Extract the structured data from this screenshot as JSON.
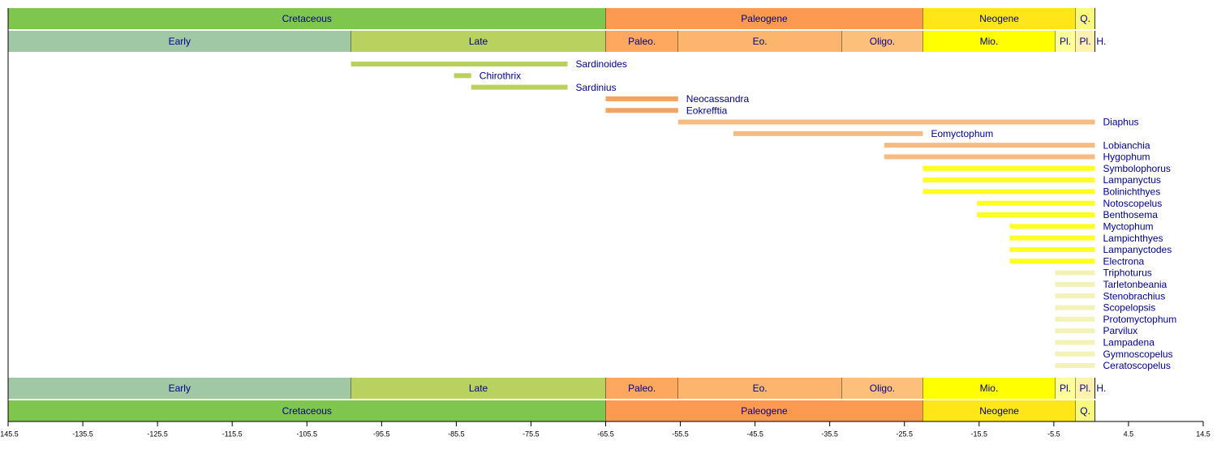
{
  "chart_data": {
    "type": "range",
    "xlim": [
      -145.5,
      14.5
    ],
    "xticks": [
      -145.5,
      -135.5,
      -125.5,
      -115.5,
      -105.5,
      -95.5,
      -85.5,
      -75.5,
      -65.5,
      -55.5,
      -45.5,
      -35.5,
      -25.5,
      -15.5,
      -5.5,
      4.5,
      14.5
    ],
    "periods": [
      {
        "name": "Cretaceous",
        "start": -145.5,
        "end": -65.5,
        "color": "#7fc64e"
      },
      {
        "name": "Paleogene",
        "start": -65.5,
        "end": -23.03,
        "color": "#fd9a52"
      },
      {
        "name": "Neogene",
        "start": -23.03,
        "end": -2.588,
        "color": "#ffe619"
      },
      {
        "name": "Q.",
        "start": -2.588,
        "end": 0,
        "color": "#f9f97f"
      }
    ],
    "epochs": [
      {
        "name": "Early",
        "start": -145.5,
        "end": -99.6,
        "color": "#a0c8a4"
      },
      {
        "name": "Late",
        "start": -99.6,
        "end": -65.5,
        "color": "#b9d15e"
      },
      {
        "name": "Paleo.",
        "start": -65.5,
        "end": -55.8,
        "color": "#fda75f"
      },
      {
        "name": "Eo.",
        "start": -55.8,
        "end": -33.9,
        "color": "#fdb46c"
      },
      {
        "name": "Oligo.",
        "start": -33.9,
        "end": -23.03,
        "color": "#fdc07a"
      },
      {
        "name": "Mio.",
        "start": -23.03,
        "end": -5.332,
        "color": "#ffff00"
      },
      {
        "name": "Pl.",
        "start": -5.332,
        "end": -2.588,
        "color": "#ffff99"
      },
      {
        "name": "Pl.",
        "start": -2.588,
        "end": -0.0117,
        "color": "#fff2ae"
      },
      {
        "name": "H.",
        "start": -0.0117,
        "end": 0,
        "color": "#fef2e0"
      }
    ],
    "taxa": [
      {
        "name": "Sardinoides",
        "start": -99.6,
        "end": -70.6,
        "color": "#b9d15e"
      },
      {
        "name": "Chirothrix",
        "start": -85.8,
        "end": -83.5,
        "color": "#b9d15e"
      },
      {
        "name": "Sardinius",
        "start": -83.5,
        "end": -70.6,
        "color": "#b9d15e"
      },
      {
        "name": "Neocassandra",
        "start": -65.5,
        "end": -55.8,
        "color": "#f4a462"
      },
      {
        "name": "Eokrefftia",
        "start": -65.5,
        "end": -55.8,
        "color": "#f4a462"
      },
      {
        "name": "Diaphus",
        "start": -55.8,
        "end": 0,
        "color": "#f6bb80"
      },
      {
        "name": "Eomyctophum",
        "start": -48.4,
        "end": -23.03,
        "color": "#f6bb80"
      },
      {
        "name": "Lobianchia",
        "start": -28.2,
        "end": 0,
        "color": "#f6bb80"
      },
      {
        "name": "Hygophum",
        "start": -28.2,
        "end": 0,
        "color": "#f6bb80"
      },
      {
        "name": "Symbolophorus",
        "start": -23.03,
        "end": 0,
        "color": "#ffff22"
      },
      {
        "name": "Lampanyctus",
        "start": -23.03,
        "end": 0,
        "color": "#ffff22"
      },
      {
        "name": "Bolinichthyes",
        "start": -23.03,
        "end": 0,
        "color": "#ffff22"
      },
      {
        "name": "Notoscopelus",
        "start": -15.8,
        "end": 0,
        "color": "#ffff22"
      },
      {
        "name": "Benthosema",
        "start": -15.8,
        "end": 0,
        "color": "#ffff22"
      },
      {
        "name": "Myctophum",
        "start": -11.4,
        "end": 0,
        "color": "#ffff22"
      },
      {
        "name": "Lampichthyes",
        "start": -11.4,
        "end": 0,
        "color": "#ffff22"
      },
      {
        "name": "Lampanyctodes",
        "start": -11.4,
        "end": 0,
        "color": "#ffff22"
      },
      {
        "name": "Electrona",
        "start": -11.4,
        "end": 0,
        "color": "#ffff22"
      },
      {
        "name": "Triphoturus",
        "start": -5.332,
        "end": 0,
        "color": "#f3f3b8"
      },
      {
        "name": "Tarletonbeania",
        "start": -5.332,
        "end": 0,
        "color": "#f3f3b8"
      },
      {
        "name": "Stenobrachius",
        "start": -5.332,
        "end": 0,
        "color": "#f3f3b8"
      },
      {
        "name": "Scopelopsis",
        "start": -5.332,
        "end": 0,
        "color": "#f3f3b8"
      },
      {
        "name": "Protomyctophum",
        "start": -5.332,
        "end": 0,
        "color": "#f3f3b8"
      },
      {
        "name": "Parvilux",
        "start": -5.332,
        "end": 0,
        "color": "#f3f3b8"
      },
      {
        "name": "Lampadena",
        "start": -5.332,
        "end": 0,
        "color": "#f3f3b8"
      },
      {
        "name": "Gymnoscopelus",
        "start": -5.332,
        "end": 0,
        "color": "#f3f3b8"
      },
      {
        "name": "Ceratoscopelus",
        "start": -5.332,
        "end": 0,
        "color": "#f3f3b8"
      }
    ]
  }
}
